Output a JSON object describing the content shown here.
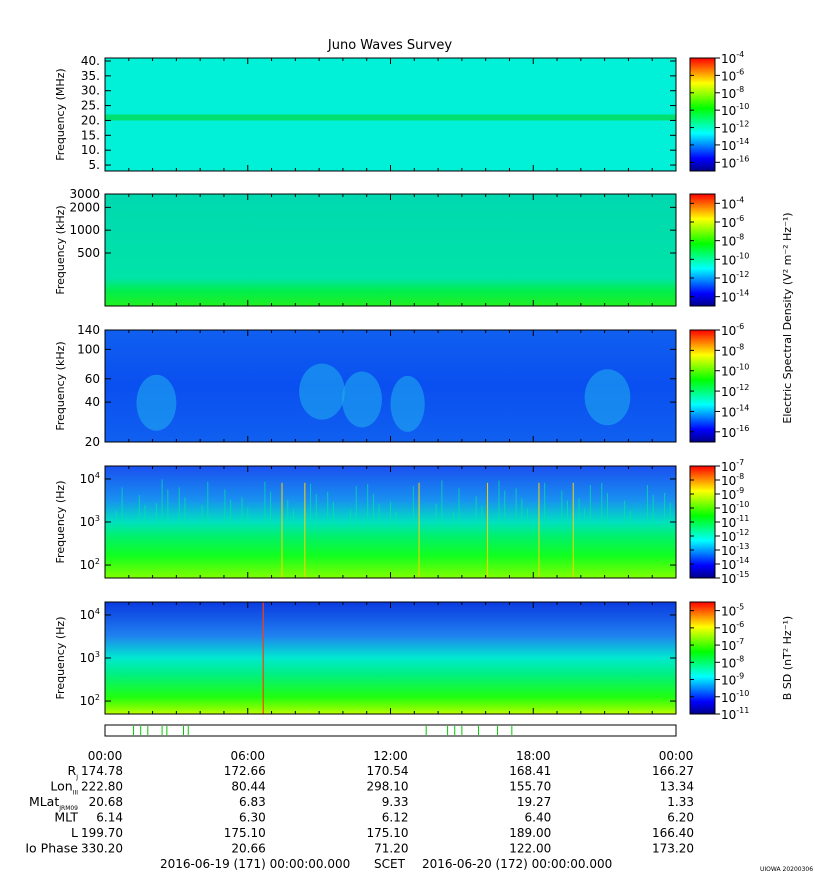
{
  "title": "Juno Waves Survey",
  "watermark": "UIOWA 20200306",
  "colors": {
    "colorbar_stops": [
      "#00008b",
      "#0000ff",
      "#0080ff",
      "#00ffff",
      "#00ff80",
      "#00ff00",
      "#80ff00",
      "#ffff00",
      "#ff8000",
      "#ff0000"
    ],
    "event_ticks": "#00cc00",
    "panel1_background": "#00f0d8",
    "panel1_band": "#00e070"
  },
  "chart_data": [
    {
      "type": "heatmap",
      "panel": 1,
      "ylabel": "Frequency (MHz)",
      "yticks": [
        "5.",
        "10.",
        "15.",
        "20.",
        "25.",
        "30.",
        "35.",
        "40."
      ],
      "ylim": [
        3,
        41
      ],
      "yscale": "linear",
      "colorbar_ticks": [
        "-4",
        "-6",
        "-8",
        "-10",
        "-12",
        "-14",
        "-16"
      ],
      "colorbar_base": "10",
      "colorbar_range_exp": [
        -17,
        -4
      ]
    },
    {
      "type": "heatmap",
      "panel": 2,
      "ylabel": "Frequency (kHz)",
      "yticks": [
        "500",
        "1000",
        "2000",
        "3000"
      ],
      "ylim": [
        100,
        3000
      ],
      "yscale": "log",
      "colorbar_ticks": [
        "-4",
        "-6",
        "-8",
        "-10",
        "-12",
        "-14"
      ],
      "colorbar_base": "10",
      "colorbar_range_exp": [
        -15,
        -3
      ],
      "colorbar_label": "Electric Spectral Density (V² m⁻² Hz⁻¹)",
      "colorbar_label_shared": true
    },
    {
      "type": "heatmap",
      "panel": 3,
      "ylabel": "Frequency (kHz)",
      "yticks": [
        "20",
        "40",
        "60",
        "100",
        "140"
      ],
      "ylim": [
        20,
        140
      ],
      "yscale": "log",
      "colorbar_ticks": [
        "-6",
        "-8",
        "-10",
        "-12",
        "-14",
        "-16"
      ],
      "colorbar_base": "10",
      "colorbar_range_exp": [
        -17,
        -6
      ]
    },
    {
      "type": "heatmap",
      "panel": 4,
      "ylabel": "Frequency (Hz)",
      "yticks": [
        {
          "base": "10",
          "exp": "2"
        },
        {
          "base": "10",
          "exp": "3"
        },
        {
          "base": "10",
          "exp": "4"
        }
      ],
      "ylim": [
        50,
        20000
      ],
      "yscale": "log",
      "colorbar_ticks": [
        "-7",
        "-8",
        "-9",
        "-10",
        "-11",
        "-12",
        "-13",
        "-14",
        "-15"
      ],
      "colorbar_base": "10",
      "colorbar_range_exp": [
        -15,
        -7
      ]
    },
    {
      "type": "heatmap",
      "panel": 5,
      "ylabel": "Frequency (Hz)",
      "yticks": [
        {
          "base": "10",
          "exp": "2"
        },
        {
          "base": "10",
          "exp": "3"
        },
        {
          "base": "10",
          "exp": "4"
        }
      ],
      "ylim": [
        50,
        20000
      ],
      "yscale": "log",
      "colorbar_ticks": [
        "-5",
        "-6",
        "-7",
        "-8",
        "-9",
        "-10",
        "-11"
      ],
      "colorbar_base": "10",
      "colorbar_range_exp": [
        -11,
        -4.5
      ],
      "colorbar_label": "B SD (nT² Hz⁻¹)"
    }
  ],
  "time_axis": {
    "tick_labels": [
      "00:00",
      "06:00",
      "12:00",
      "18:00",
      "00:00"
    ],
    "tick_hours": [
      0,
      6,
      12,
      18,
      24
    ],
    "range_hours": [
      0,
      24
    ]
  },
  "event_ticks_hours": [
    1.2,
    1.5,
    1.8,
    2.4,
    2.6,
    3.3,
    3.5,
    13.5,
    14.4,
    14.7,
    15.0,
    15.7,
    16.5,
    17.1
  ],
  "ephemeris": [
    {
      "label": "R",
      "sub": "J",
      "values": [
        "174.78",
        "172.66",
        "170.54",
        "168.41",
        "166.27"
      ]
    },
    {
      "label": "Lon",
      "sub": "III",
      "values": [
        "222.80",
        "80.44",
        "298.10",
        "155.70",
        "13.34"
      ]
    },
    {
      "label": "MLat",
      "sub": "JRM09",
      "values": [
        "20.68",
        "6.83",
        "9.33",
        "19.27",
        "1.33"
      ]
    },
    {
      "label": "MLT",
      "sub": "",
      "values": [
        "6.14",
        "6.30",
        "6.12",
        "6.40",
        "6.20"
      ]
    },
    {
      "label": "L",
      "sub": "",
      "values": [
        "199.70",
        "175.10",
        "175.10",
        "189.00",
        "166.40"
      ]
    },
    {
      "label": "Io Phase",
      "sub": "",
      "values": [
        "330.20",
        "20.66",
        "71.20",
        "122.00",
        "173.20"
      ]
    }
  ],
  "footer": {
    "start": "2016-06-19 (171) 00:00:00.000",
    "center": "SCET",
    "end": "2016-06-20 (172) 00:00:00.000"
  }
}
